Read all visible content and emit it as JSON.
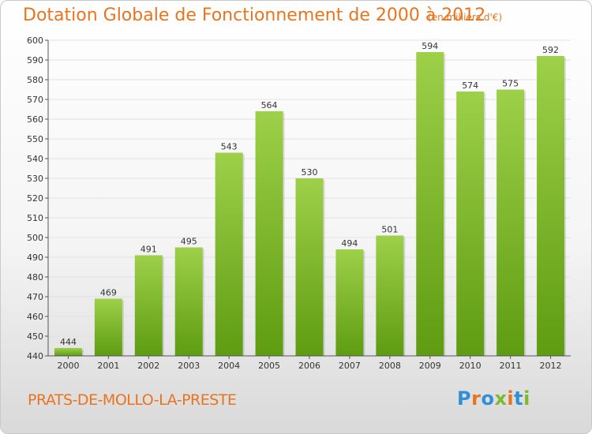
{
  "header": {
    "title": "Dotation Globale de Fonctionnement de 2000 à 2012",
    "unit": "(en milliers d'€)"
  },
  "footer": {
    "commune": "PRATS-DE-MOLLO-LA-PRESTE",
    "logo": "Proxiti"
  },
  "colors": {
    "title": "#e8741f",
    "bar_top": "#9ed04a",
    "bar_bottom": "#5e9c12",
    "grid": "#e2e2e2",
    "axis": "#555555",
    "logo_letters": [
      "#2f8fd8",
      "#e8741f",
      "#2f8fd8",
      "#7bbb2c",
      "#e8741f",
      "#2f8fd8",
      "#7bbb2c"
    ]
  },
  "chart_data": {
    "type": "bar",
    "title": "Dotation Globale de Fonctionnement de 2000 à 2012",
    "subtitle": "(en milliers d'€)",
    "categories": [
      "2000",
      "2001",
      "2002",
      "2003",
      "2004",
      "2005",
      "2006",
      "2007",
      "2008",
      "2009",
      "2010",
      "2011",
      "2012"
    ],
    "values": [
      444,
      469,
      491,
      495,
      543,
      564,
      530,
      494,
      501,
      594,
      574,
      575,
      592
    ],
    "ylim": [
      440,
      600
    ],
    "yticks": [
      440,
      450,
      460,
      470,
      480,
      490,
      500,
      510,
      520,
      530,
      540,
      550,
      560,
      570,
      580,
      590,
      600
    ],
    "grid": true,
    "legend": "none"
  }
}
